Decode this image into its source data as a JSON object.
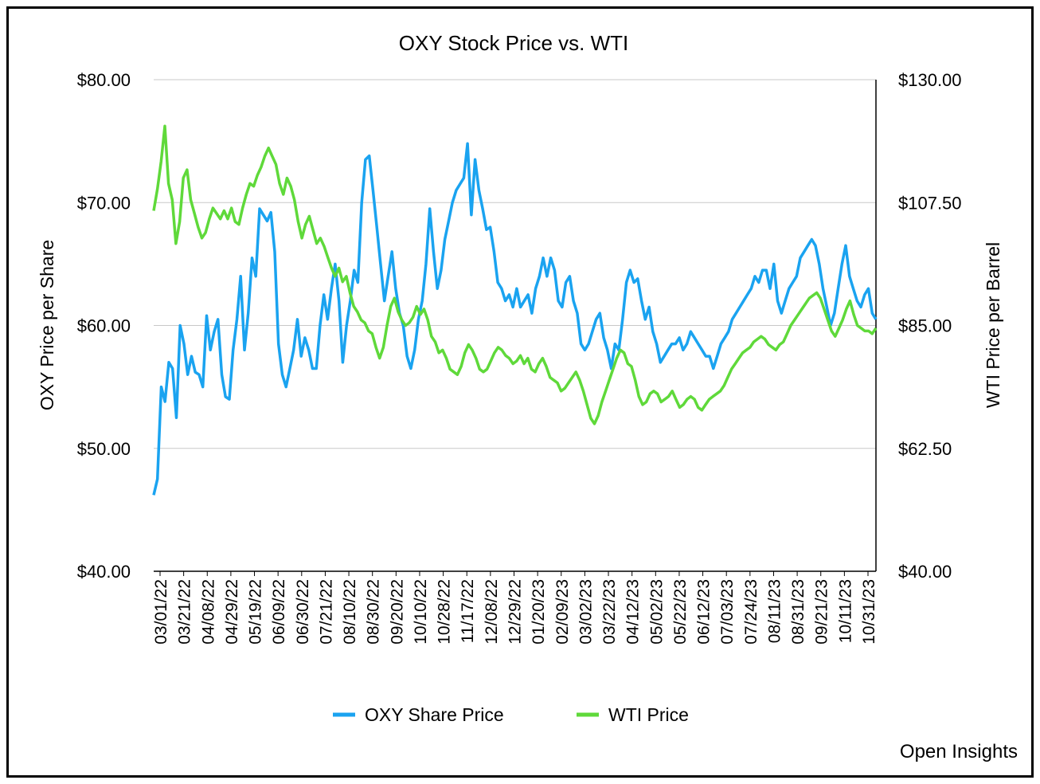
{
  "chart_data": {
    "type": "line",
    "title": "OXY Stock Price vs. WTI",
    "ylabel_left": "OXY Price per Share",
    "ylabel_right": "WTI Price per Barrel",
    "ylim_left": [
      40,
      80
    ],
    "ylim_right": [
      40,
      130
    ],
    "left_ticks": [
      {
        "v": 40,
        "label": "$40.00"
      },
      {
        "v": 50,
        "label": "$50.00"
      },
      {
        "v": 60,
        "label": "$60.00"
      },
      {
        "v": 70,
        "label": "$70.00"
      },
      {
        "v": 80,
        "label": "$80.00"
      }
    ],
    "right_ticks": [
      {
        "v": 40,
        "label": "$40.00"
      },
      {
        "v": 62.5,
        "label": "$62.50"
      },
      {
        "v": 85,
        "label": "$85.00"
      },
      {
        "v": 107.5,
        "label": "$107.50"
      },
      {
        "v": 130,
        "label": "$130.00"
      }
    ],
    "x_tick_labels": [
      "03/01/22",
      "03/21/22",
      "04/08/22",
      "04/29/22",
      "05/19/22",
      "06/09/22",
      "06/30/22",
      "07/21/22",
      "08/10/22",
      "08/30/22",
      "09/20/22",
      "10/10/22",
      "10/28/22",
      "11/17/22",
      "12/08/22",
      "12/29/22",
      "01/20/23",
      "02/09/23",
      "03/02/23",
      "03/22/23",
      "04/12/23",
      "05/02/23",
      "05/22/23",
      "06/12/23",
      "07/03/23",
      "07/24/23",
      "08/11/23",
      "08/31/23",
      "09/21/23",
      "10/11/23",
      "10/31/23"
    ],
    "grid": true,
    "legend_position": "bottom",
    "series": [
      {
        "name": "OXY Share Price",
        "axis": "left",
        "color": "#1aa3f0",
        "values": [
          46.2,
          47.5,
          55.0,
          53.8,
          57.0,
          56.5,
          52.5,
          60.0,
          58.5,
          56.0,
          57.5,
          56.2,
          56.0,
          55.0,
          60.8,
          58.0,
          59.5,
          60.5,
          56.0,
          54.2,
          54.0,
          58.0,
          60.5,
          64.0,
          58.0,
          61.0,
          65.5,
          64.0,
          69.5,
          69.0,
          68.5,
          69.2,
          66.0,
          58.5,
          56.0,
          55.0,
          56.5,
          58.0,
          60.5,
          57.5,
          59.0,
          58.0,
          56.5,
          56.5,
          60.0,
          62.5,
          60.5,
          63.0,
          65.0,
          62.0,
          57.0,
          60.0,
          62.0,
          64.5,
          63.5,
          70.0,
          73.5,
          73.8,
          71.0,
          68.0,
          65.0,
          62.0,
          64.0,
          66.0,
          63.0,
          61.0,
          60.0,
          57.5,
          56.5,
          58.0,
          60.5,
          62.0,
          65.0,
          69.5,
          66.0,
          63.0,
          64.5,
          67.0,
          68.5,
          70.0,
          71.0,
          71.5,
          72.0,
          74.8,
          69.0,
          73.5,
          71.0,
          69.5,
          67.8,
          68.0,
          66.0,
          63.5,
          63.0,
          62.0,
          62.5,
          61.5,
          63.0,
          61.5,
          62.0,
          62.5,
          61.0,
          63.0,
          64.0,
          65.5,
          64.0,
          65.5,
          64.5,
          62.0,
          61.5,
          63.5,
          64.0,
          62.0,
          61.0,
          58.5,
          58.0,
          58.5,
          59.5,
          60.5,
          61.0,
          59.0,
          58.0,
          56.5,
          58.5,
          58.0,
          60.5,
          63.5,
          64.5,
          63.5,
          63.8,
          62.0,
          60.5,
          61.5,
          59.5,
          58.5,
          57.0,
          57.5,
          58.0,
          58.5,
          58.5,
          59.0,
          58.0,
          58.5,
          59.5,
          59.0,
          58.5,
          58.0,
          57.5,
          57.5,
          56.5,
          57.5,
          58.5,
          59.0,
          59.5,
          60.5,
          61.0,
          61.5,
          62.0,
          62.5,
          63.0,
          64.0,
          63.5,
          64.5,
          64.5,
          63.0,
          65.0,
          62.0,
          61.0,
          62.0,
          63.0,
          63.5,
          64.0,
          65.5,
          66.0,
          66.5,
          67.0,
          66.5,
          65.0,
          63.0,
          61.5,
          60.0,
          61.0,
          63.0,
          65.0,
          66.5,
          64.0,
          63.0,
          62.0,
          61.5,
          62.5,
          63.0,
          61.0,
          60.5
        ]
      },
      {
        "name": "WTI Price",
        "axis": "right",
        "color": "#5fd93a",
        "values": [
          106.0,
          110.0,
          115.0,
          121.5,
          111.0,
          108.0,
          100.0,
          104.0,
          112.0,
          113.5,
          108.0,
          105.5,
          103.0,
          101.0,
          102.0,
          104.5,
          106.5,
          105.5,
          104.5,
          106.0,
          104.5,
          106.5,
          104.0,
          103.5,
          106.5,
          109.0,
          111.0,
          110.5,
          112.5,
          114.0,
          116.0,
          117.5,
          116.0,
          114.5,
          111.0,
          109.0,
          112.0,
          110.5,
          108.0,
          104.0,
          101.0,
          103.5,
          105.0,
          102.5,
          100.0,
          101.0,
          99.5,
          97.5,
          95.5,
          94.0,
          95.5,
          93.0,
          94.0,
          91.0,
          88.5,
          87.5,
          86.0,
          85.5,
          84.0,
          83.5,
          81.0,
          79.0,
          81.0,
          85.0,
          88.5,
          90.0,
          87.5,
          86.0,
          85.0,
          85.5,
          86.5,
          88.5,
          87.0,
          88.0,
          86.0,
          83.0,
          82.0,
          80.0,
          80.5,
          79.0,
          77.0,
          76.5,
          76.0,
          77.5,
          80.0,
          81.5,
          80.5,
          79.0,
          77.0,
          76.5,
          77.0,
          78.5,
          80.0,
          81.0,
          80.5,
          79.5,
          79.0,
          78.0,
          78.5,
          79.5,
          78.0,
          79.0,
          77.0,
          76.5,
          78.0,
          79.0,
          77.5,
          75.5,
          75.0,
          74.5,
          73.0,
          73.5,
          74.5,
          75.5,
          76.5,
          75.0,
          73.0,
          70.5,
          68.0,
          67.0,
          68.5,
          71.0,
          73.0,
          75.0,
          77.0,
          79.0,
          80.5,
          80.0,
          78.0,
          77.5,
          75.0,
          72.0,
          70.5,
          71.0,
          72.5,
          73.0,
          72.5,
          71.0,
          71.5,
          72.0,
          73.0,
          71.5,
          70.0,
          70.5,
          71.5,
          72.0,
          71.5,
          70.0,
          69.5,
          70.5,
          71.5,
          72.0,
          72.5,
          73.0,
          74.0,
          75.5,
          77.0,
          78.0,
          79.0,
          80.0,
          80.5,
          81.0,
          82.0,
          82.5,
          83.0,
          82.5,
          81.5,
          81.0,
          80.5,
          81.5,
          82.0,
          83.5,
          85.0,
          86.0,
          87.0,
          88.0,
          89.0,
          90.0,
          90.5,
          91.0,
          90.0,
          88.0,
          86.0,
          84.0,
          83.0,
          84.5,
          86.0,
          88.0,
          89.5,
          87.0,
          85.0,
          84.5,
          84.0,
          84.0,
          83.5,
          84.5
        ]
      }
    ]
  },
  "credit": "Open Insights"
}
